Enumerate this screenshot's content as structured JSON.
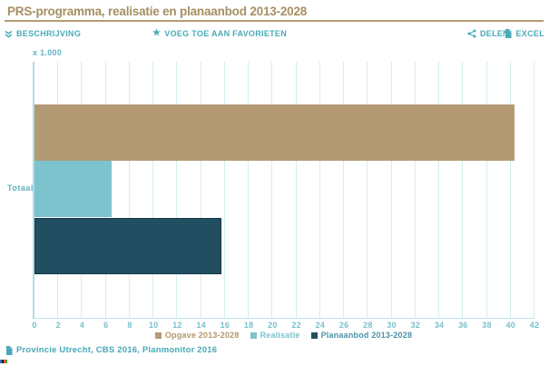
{
  "page": {
    "title": "PRS-programma, realisatie en planaanbod 2013-2028",
    "title_color": "#a68f62",
    "accent_teal": "#4aabb7",
    "rule_color": "#b59c72"
  },
  "toolbar": {
    "beschrijving_label": "BESCHRIJVING",
    "favorites_label": "VOEG TOE AAN FAVORIETEN",
    "delen_label": "DELEN",
    "excel_label": "EXCEL",
    "icons": {
      "beschrijving": "double-chevron-down-icon",
      "favorites": "star-icon",
      "delen": "share-nodes-icon",
      "excel": "file-icon"
    }
  },
  "chart_data": {
    "type": "bar",
    "orientation": "horizontal",
    "title": "PRS-programma, realisatie en planaanbod 2013-2028",
    "unit_label": "x 1.000",
    "categories": [
      "Totaal"
    ],
    "series": [
      {
        "name": "Opgave 2013-2028",
        "values": [
          40.3
        ],
        "color": "#b39a74",
        "border_color": "#b39a74",
        "label_color": "#b3986d"
      },
      {
        "name": "Realisatie",
        "values": [
          6.5
        ],
        "color": "#7cc3ce",
        "border_color": "#7cc3ce",
        "label_color": "#7cc3ce"
      },
      {
        "name": "Planaanbod 2013-2028",
        "values": [
          15.7
        ],
        "color": "#224e62",
        "border_color": "#16394a",
        "label_color": "#4a93a8"
      }
    ],
    "xlim": [
      0,
      42
    ],
    "tick_step": 2,
    "grid": true,
    "gridline_color": "#d6edf2",
    "legend_position": "bottom-center"
  },
  "footer": {
    "source": "Provincie Utrecht, CBS 2016, Planmonitor 2016"
  },
  "star_glyph": "★"
}
